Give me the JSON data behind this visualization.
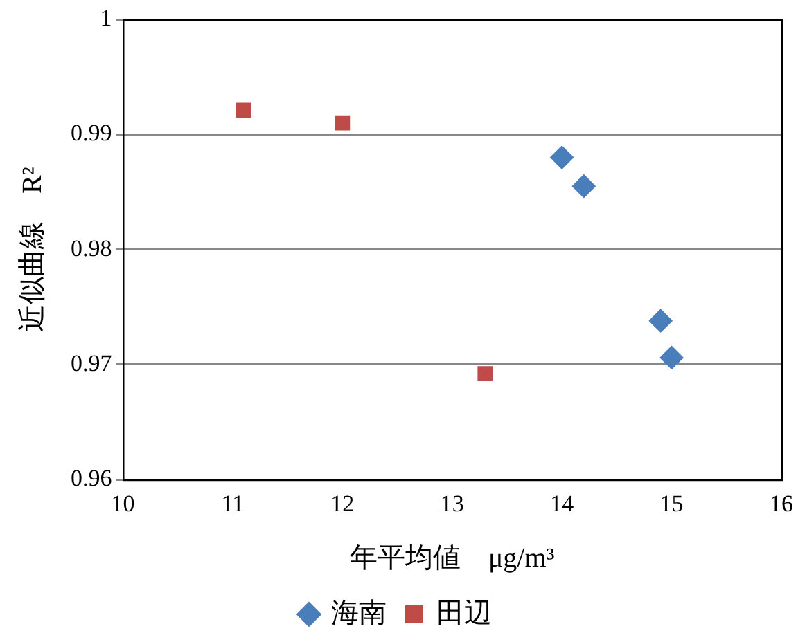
{
  "chart_data": {
    "type": "scatter",
    "xlabel": "年平均値　μg/m³",
    "ylabel": "近似曲線　R²",
    "series": [
      {
        "name": "海南",
        "color": "#4a7ebb",
        "marker": "diamond",
        "x": [
          14.0,
          14.2,
          14.9,
          15.0
        ],
        "values": [
          0.988,
          0.9855,
          0.9738,
          0.9706
        ]
      },
      {
        "name": "田辺",
        "color": "#be4b48",
        "marker": "square",
        "x": [
          11.1,
          12.0,
          13.3
        ],
        "values": [
          0.9921,
          0.991,
          0.9692
        ]
      }
    ],
    "xlim": [
      10,
      16
    ],
    "xticks": [
      10,
      11,
      12,
      13,
      14,
      15,
      16
    ],
    "ylim": [
      0.96,
      1
    ],
    "yticks": [
      0.96,
      0.97,
      0.98,
      0.99,
      1
    ],
    "grid": "y",
    "legend": "bottom"
  }
}
